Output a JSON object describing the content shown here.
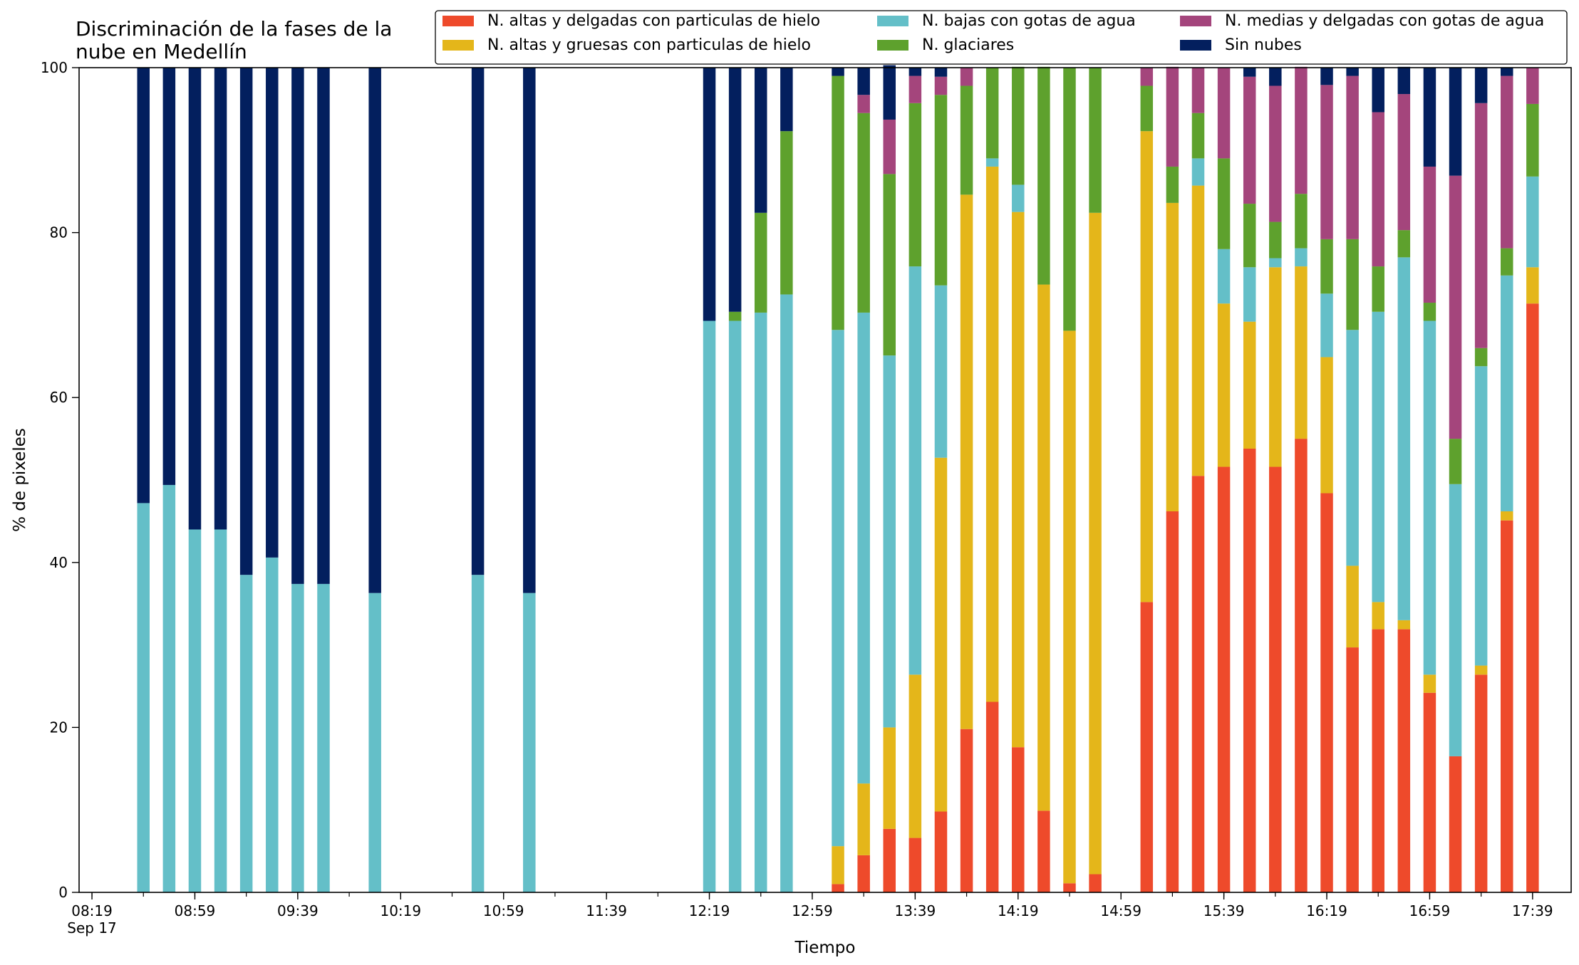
{
  "chart_data": {
    "type": "bar",
    "stacked": true,
    "title": "Discriminación de la fases de la nube en Medellín",
    "title_lines": [
      "Discriminación de la fases de la",
      "nube en Medellín"
    ],
    "xlabel": "Tiempo",
    "ylabel": "% de pixeles",
    "ylim": [
      0,
      100
    ],
    "xlim": [
      "08:14",
      "17:54"
    ],
    "date_label": "Sep 17",
    "x_ticks": [
      "08:19",
      "08:59",
      "09:39",
      "10:19",
      "10:59",
      "11:39",
      "12:19",
      "12:59",
      "13:39",
      "14:19",
      "14:59",
      "15:39",
      "16:19",
      "16:59",
      "17:39"
    ],
    "y_ticks": [
      "0",
      "20",
      "40",
      "60",
      "80",
      "100"
    ],
    "grid": false,
    "legend_position": "top-right",
    "x": [
      "08:39",
      "08:49",
      "08:59",
      "09:09",
      "09:19",
      "09:29",
      "09:39",
      "09:49",
      "10:09",
      "10:49",
      "11:09",
      "12:19",
      "12:29",
      "12:39",
      "12:49",
      "13:09",
      "13:19",
      "13:29",
      "13:39",
      "13:49",
      "13:59",
      "14:09",
      "14:19",
      "14:29",
      "14:39",
      "14:49",
      "15:09",
      "15:19",
      "15:29",
      "15:39",
      "15:49",
      "15:59",
      "16:09",
      "16:19",
      "16:29",
      "16:39",
      "16:49",
      "16:59",
      "17:09",
      "17:19",
      "17:29",
      "17:39"
    ],
    "series": [
      {
        "name": "N. altas y delgadas con particulas de hielo",
        "color": "#ee4a2b",
        "values": [
          0,
          0,
          0,
          0,
          0,
          0,
          0,
          0,
          0,
          0,
          0,
          0,
          0,
          0,
          0,
          1,
          4.5,
          7.7,
          6.6,
          9.8,
          19.8,
          23.1,
          17.6,
          9.9,
          1.1,
          2.2,
          35.2,
          46.2,
          50.5,
          51.6,
          53.8,
          51.6,
          55,
          48.4,
          29.7,
          31.9,
          31.9,
          24.2,
          16.5,
          26.4,
          45.1,
          71.4
        ]
      },
      {
        "name": "N. altas y gruesas con particulas de hielo",
        "color": "#e4b61a",
        "values": [
          0,
          0,
          0,
          0,
          0,
          0,
          0,
          0,
          0,
          0,
          0,
          0,
          0,
          0,
          0,
          4.6,
          8.7,
          12.3,
          19.8,
          42.9,
          64.8,
          64.9,
          64.9,
          63.8,
          67.0,
          80.2,
          57.1,
          37.4,
          35.2,
          19.8,
          15.4,
          24.2,
          20.9,
          16.5,
          9.9,
          3.3,
          1.1,
          2.2,
          0,
          1.1,
          1.1,
          4.4
        ]
      },
      {
        "name": "N. bajas con gotas de agua",
        "color": "#64bfc8",
        "values": [
          47.2,
          49.4,
          44.0,
          44.0,
          38.5,
          40.6,
          37.4,
          37.4,
          36.3,
          38.5,
          36.3,
          69.3,
          69.3,
          70.3,
          72.5,
          62.6,
          57.1,
          45.1,
          49.5,
          20.9,
          0,
          1.0,
          3.3,
          0,
          0,
          0,
          0,
          0,
          3.3,
          6.6,
          6.6,
          1.1,
          2.2,
          7.7,
          28.6,
          35.2,
          44.0,
          42.9,
          33.0,
          36.3,
          28.6,
          11.0
        ]
      },
      {
        "name": "N. glaciares",
        "color": "#5ea12d",
        "values": [
          0,
          0,
          0,
          0,
          0,
          0,
          0,
          0,
          0,
          0,
          0,
          0,
          1.1,
          12.1,
          19.8,
          30.8,
          24.2,
          22.0,
          19.8,
          23.1,
          13.2,
          11.0,
          14.3,
          26.4,
          31.9,
          17.6,
          5.5,
          4.4,
          5.5,
          11.0,
          7.7,
          4.4,
          6.6,
          6.6,
          11.0,
          5.5,
          3.3,
          2.2,
          5.5,
          2.2,
          3.3,
          8.8
        ]
      },
      {
        "name": "N. medias y delgadas con gotas de agua",
        "color": "#a4457c",
        "values": [
          0,
          0,
          0,
          0,
          0,
          0,
          0,
          0,
          0,
          0,
          0,
          0,
          0,
          0,
          0,
          0,
          2.2,
          6.6,
          3.3,
          2.2,
          2.2,
          0,
          0,
          0,
          0,
          0,
          2.2,
          12.1,
          5.5,
          11.0,
          15.4,
          16.5,
          15.4,
          18.7,
          19.8,
          18.7,
          16.5,
          16.5,
          31.9,
          29.7,
          20.9,
          4.4
        ]
      },
      {
        "name": "Sin nubes",
        "color": "#031f5e",
        "values": [
          52.8,
          50.6,
          56.0,
          56.0,
          61.5,
          59.4,
          62.6,
          62.6,
          63.7,
          61.5,
          63.7,
          30.7,
          29.6,
          17.6,
          7.7,
          1.0,
          3.3,
          6.6,
          1.0,
          1.1,
          0,
          0,
          0,
          0,
          0,
          0,
          0,
          0,
          0,
          0,
          1.1,
          2.2,
          0,
          2.1,
          1.0,
          5.4,
          3.3,
          12.0,
          13.1,
          4.3,
          1.0,
          0
        ]
      }
    ]
  }
}
